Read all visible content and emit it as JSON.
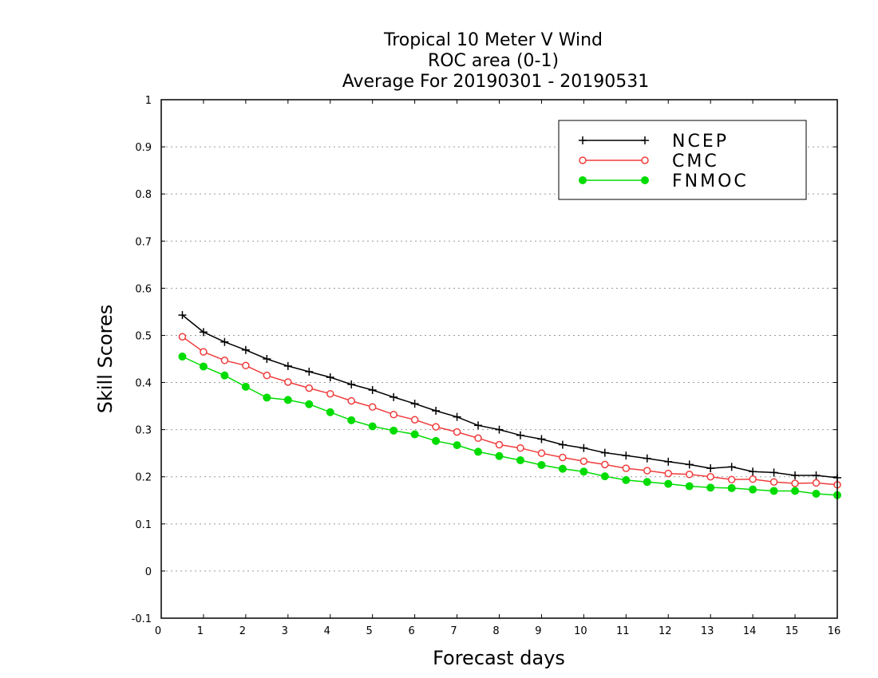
{
  "chart_data": {
    "type": "line",
    "title": [
      "Tropical 10 Meter V Wind",
      "ROC area (0-1)",
      "Average For 20190301 - 20190531"
    ],
    "xlabel": "Forecast days",
    "ylabel": "Skill Scores",
    "xlim": [
      0,
      16
    ],
    "ylim": [
      -0.1,
      1
    ],
    "xticks": [
      "0",
      "1",
      "2",
      "3",
      "4",
      "5",
      "6",
      "7",
      "8",
      "9",
      "10",
      "11",
      "12",
      "13",
      "14",
      "15",
      "16"
    ],
    "yticks": [
      "-0.1",
      "0",
      "0.1",
      "0.2",
      "0.3",
      "0.4",
      "0.5",
      "0.6",
      "0.7",
      "0.8",
      "0.9",
      "1"
    ],
    "grid": true,
    "legend_position": "top-right",
    "x": [
      0.5,
      1,
      1.5,
      2,
      2.5,
      3,
      3.5,
      4,
      4.5,
      5,
      5.5,
      6,
      6.5,
      7,
      7.5,
      8,
      8.5,
      9,
      9.5,
      10,
      10.5,
      11,
      11.5,
      12,
      12.5,
      13,
      13.5,
      14,
      14.5,
      15,
      15.5,
      16
    ],
    "series": [
      {
        "name": "NCEP",
        "color": "#000000",
        "marker": "plus",
        "values": [
          0.543,
          0.507,
          0.486,
          0.469,
          0.45,
          0.435,
          0.423,
          0.411,
          0.396,
          0.384,
          0.369,
          0.355,
          0.34,
          0.327,
          0.309,
          0.3,
          0.288,
          0.28,
          0.268,
          0.261,
          0.251,
          0.245,
          0.239,
          0.232,
          0.226,
          0.218,
          0.221,
          0.211,
          0.209,
          0.203,
          0.203,
          0.198
        ]
      },
      {
        "name": "CMC",
        "color": "#f03c3c",
        "marker": "open-circle",
        "values": [
          0.497,
          0.465,
          0.447,
          0.436,
          0.415,
          0.401,
          0.388,
          0.376,
          0.361,
          0.348,
          0.332,
          0.321,
          0.306,
          0.295,
          0.282,
          0.268,
          0.261,
          0.25,
          0.241,
          0.233,
          0.226,
          0.218,
          0.213,
          0.207,
          0.205,
          0.2,
          0.194,
          0.195,
          0.189,
          0.186,
          0.187,
          0.183
        ]
      },
      {
        "name": "FNMOC",
        "color": "#00dc00",
        "marker": "filled-circle",
        "values": [
          0.455,
          0.434,
          0.415,
          0.391,
          0.368,
          0.363,
          0.354,
          0.337,
          0.32,
          0.307,
          0.298,
          0.29,
          0.276,
          0.267,
          0.253,
          0.244,
          0.235,
          0.225,
          0.217,
          0.211,
          0.201,
          0.193,
          0.189,
          0.185,
          0.18,
          0.177,
          0.176,
          0.173,
          0.17,
          0.17,
          0.164,
          0.161
        ]
      }
    ]
  }
}
